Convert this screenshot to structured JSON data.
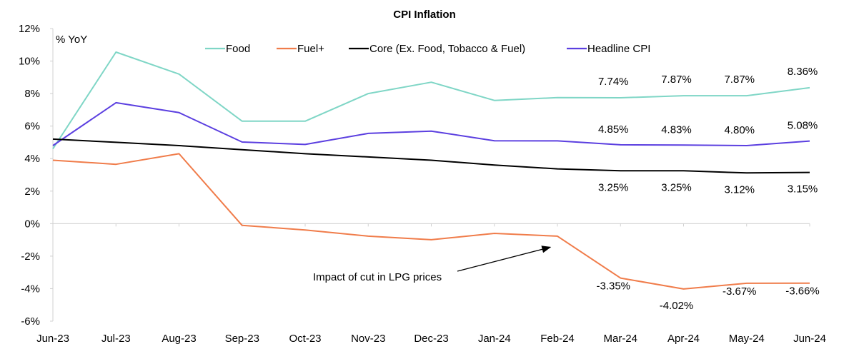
{
  "chart_data": {
    "type": "line",
    "title": "CPI Inflation",
    "ylabel": "% YoY",
    "xlabel": "",
    "ylim": [
      -6,
      12
    ],
    "ytick_step": 2,
    "ytick_labels": [
      "12%",
      "10%",
      "8%",
      "6%",
      "4%",
      "2%",
      "0%",
      "-2%",
      "-4%",
      "-6%"
    ],
    "grid": false,
    "legend_position": "top",
    "categories": [
      "Jun-23",
      "Jul-23",
      "Aug-23",
      "Sep-23",
      "Oct-23",
      "Nov-23",
      "Dec-23",
      "Jan-24",
      "Feb-24",
      "Mar-24",
      "Apr-24",
      "May-24",
      "Jun-24"
    ],
    "series": [
      {
        "name": "Food",
        "color": "#7fd6c6",
        "values": [
          4.6,
          10.55,
          9.2,
          6.3,
          6.3,
          8.0,
          8.7,
          7.58,
          7.75,
          7.74,
          7.87,
          7.87,
          8.36
        ],
        "labels": [
          "",
          "",
          "",
          "",
          "",
          "",
          "",
          "",
          "",
          "7.74%",
          "7.87%",
          "7.87%",
          "8.36%"
        ]
      },
      {
        "name": "Fuel+",
        "color": "#f07c4a",
        "values": [
          3.9,
          3.65,
          4.3,
          -0.11,
          -0.39,
          -0.77,
          -0.99,
          -0.6,
          -0.77,
          -3.35,
          -4.02,
          -3.67,
          -3.66
        ],
        "labels": [
          "",
          "",
          "",
          "",
          "",
          "",
          "",
          "",
          "",
          "-3.35%",
          "-4.02%",
          "-3.67%",
          "-3.66%"
        ]
      },
      {
        "name": "Core (Ex. Food, Tobacco & Fuel)",
        "color": "#000000",
        "values": [
          5.2,
          5.0,
          4.8,
          4.55,
          4.3,
          4.1,
          3.9,
          3.6,
          3.37,
          3.25,
          3.25,
          3.12,
          3.15
        ],
        "labels": [
          "",
          "",
          "",
          "",
          "",
          "",
          "",
          "",
          "",
          "3.25%",
          "3.25%",
          "3.12%",
          "3.15%"
        ]
      },
      {
        "name": "Headline CPI",
        "color": "#5b3fe0",
        "values": [
          4.8,
          7.44,
          6.83,
          5.02,
          4.87,
          5.55,
          5.69,
          5.1,
          5.09,
          4.85,
          4.83,
          4.8,
          5.08
        ],
        "labels": [
          "",
          "",
          "",
          "",
          "",
          "",
          "",
          "",
          "",
          "4.85%",
          "4.83%",
          "4.80%",
          "5.08%"
        ]
      }
    ],
    "annotation": {
      "text": "Impact of cut in LPG prices",
      "points_to": "Feb-24"
    }
  }
}
